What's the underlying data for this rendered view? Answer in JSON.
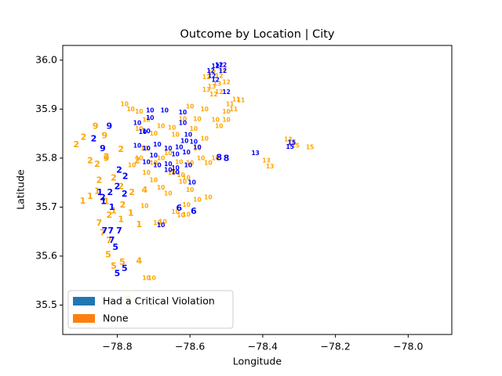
{
  "chart_data": {
    "type": "scatter",
    "title": "Outcome by Location | City",
    "xlabel": "Longitude",
    "ylabel": "Latitude",
    "xlim": [
      -78.95,
      -77.88
    ],
    "ylim": [
      35.44,
      36.03
    ],
    "xticks": [
      -78.8,
      -78.6,
      -78.4,
      -78.2,
      -78.0
    ],
    "xtick_labels": [
      "−78.8",
      "−78.6",
      "−78.4",
      "−78.2",
      "−78.0"
    ],
    "yticks": [
      35.5,
      35.6,
      35.7,
      35.8,
      35.9,
      36.0
    ],
    "ytick_labels": [
      "35.5",
      "35.6",
      "35.7",
      "35.8",
      "35.9",
      "36.0"
    ],
    "grid": false,
    "legend_position": "lower-left",
    "legend": [
      {
        "label": "Had a Critical Violation",
        "color": "#1f77b4"
      },
      {
        "label": "None",
        "color": "#ff7f0e"
      }
    ],
    "series": [
      {
        "name": "None",
        "color": "#ffa500",
        "points": [
          {
            "x": -78.77,
            "y": 35.513,
            "label": "0"
          },
          {
            "x": -78.875,
            "y": 35.722,
            "label": "1"
          },
          {
            "x": -78.855,
            "y": 35.733,
            "label": "1"
          },
          {
            "x": -78.83,
            "y": 35.712,
            "label": "1"
          },
          {
            "x": -78.81,
            "y": 35.693,
            "label": "1"
          },
          {
            "x": -78.79,
            "y": 35.675,
            "label": "1"
          },
          {
            "x": -78.763,
            "y": 35.688,
            "label": "1"
          },
          {
            "x": -78.74,
            "y": 35.665,
            "label": "1"
          },
          {
            "x": -78.895,
            "y": 35.713,
            "label": "1"
          },
          {
            "x": -78.913,
            "y": 35.828,
            "label": "2"
          },
          {
            "x": -78.893,
            "y": 35.843,
            "label": "2"
          },
          {
            "x": -78.875,
            "y": 35.795,
            "label": "2"
          },
          {
            "x": -78.855,
            "y": 35.788,
            "label": "2"
          },
          {
            "x": -78.83,
            "y": 35.803,
            "label": "2"
          },
          {
            "x": -78.81,
            "y": 35.76,
            "label": "2"
          },
          {
            "x": -78.79,
            "y": 35.742,
            "label": "2"
          },
          {
            "x": -78.785,
            "y": 35.705,
            "label": "2"
          },
          {
            "x": -78.76,
            "y": 35.73,
            "label": "2"
          },
          {
            "x": -78.745,
            "y": 35.795,
            "label": "2"
          },
          {
            "x": -78.822,
            "y": 35.684,
            "label": "2"
          },
          {
            "x": -78.85,
            "y": 35.755,
            "label": "2"
          },
          {
            "x": -78.79,
            "y": 35.818,
            "label": "2"
          },
          {
            "x": -78.86,
            "y": 35.865,
            "label": "9"
          },
          {
            "x": -78.835,
            "y": 35.846,
            "label": "9"
          },
          {
            "x": -78.83,
            "y": 35.8,
            "label": "9"
          },
          {
            "x": -78.725,
            "y": 35.735,
            "label": "4"
          },
          {
            "x": -78.74,
            "y": 35.59,
            "label": "4"
          },
          {
            "x": -78.84,
            "y": 35.648,
            "label": "7"
          },
          {
            "x": -78.823,
            "y": 35.632,
            "label": "7"
          },
          {
            "x": -78.85,
            "y": 35.668,
            "label": "7"
          },
          {
            "x": -78.825,
            "y": 35.603,
            "label": "5"
          },
          {
            "x": -78.81,
            "y": 35.58,
            "label": "5"
          },
          {
            "x": -78.786,
            "y": 35.588,
            "label": "5"
          },
          {
            "x": -78.763,
            "y": 35.9,
            "label": "10"
          },
          {
            "x": -78.78,
            "y": 35.91,
            "label": "10"
          },
          {
            "x": -78.74,
            "y": 35.895,
            "label": "10"
          },
          {
            "x": -78.72,
            "y": 35.878,
            "label": "10"
          },
          {
            "x": -78.68,
            "y": 35.865,
            "label": "10"
          },
          {
            "x": -78.74,
            "y": 35.86,
            "label": "10"
          },
          {
            "x": -78.7,
            "y": 35.85,
            "label": "10"
          },
          {
            "x": -78.725,
            "y": 35.82,
            "label": "10"
          },
          {
            "x": -78.74,
            "y": 35.8,
            "label": "10"
          },
          {
            "x": -78.76,
            "y": 35.785,
            "label": "10"
          },
          {
            "x": -78.7,
            "y": 35.79,
            "label": "10"
          },
          {
            "x": -78.68,
            "y": 35.8,
            "label": "10"
          },
          {
            "x": -78.72,
            "y": 35.77,
            "label": "10"
          },
          {
            "x": -78.66,
            "y": 35.81,
            "label": "10"
          },
          {
            "x": -78.7,
            "y": 35.755,
            "label": "10"
          },
          {
            "x": -78.68,
            "y": 35.74,
            "label": "10"
          },
          {
            "x": -78.66,
            "y": 35.728,
            "label": "10"
          },
          {
            "x": -78.62,
            "y": 35.752,
            "label": "10"
          },
          {
            "x": -78.6,
            "y": 35.735,
            "label": "10"
          },
          {
            "x": -78.63,
            "y": 35.792,
            "label": "10"
          },
          {
            "x": -78.6,
            "y": 35.79,
            "label": "10"
          },
          {
            "x": -78.57,
            "y": 35.8,
            "label": "10"
          },
          {
            "x": -78.55,
            "y": 35.79,
            "label": "10"
          },
          {
            "x": -78.58,
            "y": 35.82,
            "label": "10"
          },
          {
            "x": -78.56,
            "y": 35.84,
            "label": "10"
          },
          {
            "x": -78.59,
            "y": 35.86,
            "label": "10"
          },
          {
            "x": -78.58,
            "y": 35.88,
            "label": "10"
          },
          {
            "x": -78.56,
            "y": 35.9,
            "label": "10"
          },
          {
            "x": -78.6,
            "y": 35.905,
            "label": "10"
          },
          {
            "x": -78.62,
            "y": 35.88,
            "label": "10"
          },
          {
            "x": -78.64,
            "y": 35.848,
            "label": "10"
          },
          {
            "x": -78.65,
            "y": 35.862,
            "label": "10"
          },
          {
            "x": -78.53,
            "y": 35.878,
            "label": "10"
          },
          {
            "x": -78.5,
            "y": 35.895,
            "label": "10"
          },
          {
            "x": -78.5,
            "y": 35.878,
            "label": "10"
          },
          {
            "x": -78.53,
            "y": 35.8,
            "label": "10"
          },
          {
            "x": -78.61,
            "y": 35.705,
            "label": "10"
          },
          {
            "x": -78.58,
            "y": 35.715,
            "label": "10"
          },
          {
            "x": -78.55,
            "y": 35.72,
            "label": "10"
          },
          {
            "x": -78.64,
            "y": 35.69,
            "label": "10"
          },
          {
            "x": -78.625,
            "y": 35.683,
            "label": "10"
          },
          {
            "x": -78.61,
            "y": 35.685,
            "label": "10"
          },
          {
            "x": -78.65,
            "y": 35.77,
            "label": "10"
          },
          {
            "x": -78.675,
            "y": 35.67,
            "label": "10"
          },
          {
            "x": -78.69,
            "y": 35.668,
            "label": "10"
          },
          {
            "x": -78.72,
            "y": 35.555,
            "label": "10"
          },
          {
            "x": -78.705,
            "y": 35.555,
            "label": "10"
          },
          {
            "x": -78.725,
            "y": 35.702,
            "label": "10"
          },
          {
            "x": -78.625,
            "y": 35.765,
            "label": "10"
          },
          {
            "x": -78.61,
            "y": 35.76,
            "label": "10"
          },
          {
            "x": -78.52,
            "y": 35.865,
            "label": "10"
          },
          {
            "x": -78.49,
            "y": 35.91,
            "label": "11"
          },
          {
            "x": -78.473,
            "y": 35.92,
            "label": "11"
          },
          {
            "x": -78.46,
            "y": 35.918,
            "label": "11"
          },
          {
            "x": -78.48,
            "y": 35.9,
            "label": "11"
          },
          {
            "x": -78.555,
            "y": 35.965,
            "label": "12"
          },
          {
            "x": -78.54,
            "y": 35.975,
            "label": "12"
          },
          {
            "x": -78.52,
            "y": 35.968,
            "label": "12"
          },
          {
            "x": -78.51,
            "y": 35.982,
            "label": "12"
          },
          {
            "x": -78.535,
            "y": 35.93,
            "label": "12"
          },
          {
            "x": -78.52,
            "y": 35.935,
            "label": "12"
          },
          {
            "x": -78.5,
            "y": 35.955,
            "label": "12"
          },
          {
            "x": -78.555,
            "y": 35.94,
            "label": "13"
          },
          {
            "x": -78.54,
            "y": 35.946,
            "label": "13"
          },
          {
            "x": -78.525,
            "y": 35.952,
            "label": "13"
          },
          {
            "x": -78.39,
            "y": 35.795,
            "label": "13"
          },
          {
            "x": -78.38,
            "y": 35.783,
            "label": "13"
          },
          {
            "x": -78.33,
            "y": 35.838,
            "label": "13"
          },
          {
            "x": -78.32,
            "y": 35.83,
            "label": "13"
          },
          {
            "x": -78.31,
            "y": 35.825,
            "label": "15"
          },
          {
            "x": -78.27,
            "y": 35.822,
            "label": "15"
          }
        ]
      },
      {
        "name": "Had a Critical Violation",
        "color": "#0000ff",
        "points": [
          {
            "x": -78.848,
            "y": 35.73,
            "label": "1"
          },
          {
            "x": -78.838,
            "y": 35.712,
            "label": "1"
          },
          {
            "x": -78.815,
            "y": 35.7,
            "label": "1"
          },
          {
            "x": -78.82,
            "y": 35.73,
            "label": "2"
          },
          {
            "x": -78.84,
            "y": 35.72,
            "label": "2"
          },
          {
            "x": -78.8,
            "y": 35.742,
            "label": "2"
          },
          {
            "x": -78.78,
            "y": 35.727,
            "label": "2"
          },
          {
            "x": -78.778,
            "y": 35.763,
            "label": "2"
          },
          {
            "x": -78.795,
            "y": 35.776,
            "label": "2"
          },
          {
            "x": -78.865,
            "y": 35.84,
            "label": "2"
          },
          {
            "x": -78.822,
            "y": 35.865,
            "label": "9"
          },
          {
            "x": -78.84,
            "y": 35.82,
            "label": "9"
          },
          {
            "x": -78.835,
            "y": 35.652,
            "label": "7"
          },
          {
            "x": -78.818,
            "y": 35.652,
            "label": "7"
          },
          {
            "x": -78.795,
            "y": 35.652,
            "label": "7"
          },
          {
            "x": -78.815,
            "y": 35.633,
            "label": "7"
          },
          {
            "x": -78.805,
            "y": 35.618,
            "label": "5"
          },
          {
            "x": -78.8,
            "y": 35.565,
            "label": "5"
          },
          {
            "x": -78.78,
            "y": 35.575,
            "label": "5"
          },
          {
            "x": -78.63,
            "y": 35.698,
            "label": "6"
          },
          {
            "x": -78.59,
            "y": 35.692,
            "label": "6"
          },
          {
            "x": -78.5,
            "y": 35.8,
            "label": "8"
          },
          {
            "x": -78.52,
            "y": 35.801,
            "label": "8"
          },
          {
            "x": -78.71,
            "y": 35.897,
            "label": "10"
          },
          {
            "x": -78.67,
            "y": 35.897,
            "label": "10"
          },
          {
            "x": -78.62,
            "y": 35.893,
            "label": "10"
          },
          {
            "x": -78.71,
            "y": 35.882,
            "label": "10"
          },
          {
            "x": -78.745,
            "y": 35.872,
            "label": "10"
          },
          {
            "x": -78.62,
            "y": 35.872,
            "label": "10"
          },
          {
            "x": -78.72,
            "y": 35.855,
            "label": "10"
          },
          {
            "x": -78.73,
            "y": 35.853,
            "label": "10"
          },
          {
            "x": -78.605,
            "y": 35.848,
            "label": "10"
          },
          {
            "x": -78.615,
            "y": 35.835,
            "label": "10"
          },
          {
            "x": -78.63,
            "y": 35.822,
            "label": "10"
          },
          {
            "x": -78.69,
            "y": 35.828,
            "label": "10"
          },
          {
            "x": -78.745,
            "y": 35.825,
            "label": "10"
          },
          {
            "x": -78.72,
            "y": 35.82,
            "label": "10"
          },
          {
            "x": -78.66,
            "y": 35.82,
            "label": "10"
          },
          {
            "x": -78.58,
            "y": 35.822,
            "label": "10"
          },
          {
            "x": -78.59,
            "y": 35.833,
            "label": "10"
          },
          {
            "x": -78.61,
            "y": 35.812,
            "label": "10"
          },
          {
            "x": -78.64,
            "y": 35.808,
            "label": "10"
          },
          {
            "x": -78.7,
            "y": 35.805,
            "label": "10"
          },
          {
            "x": -78.72,
            "y": 35.792,
            "label": "10"
          },
          {
            "x": -78.69,
            "y": 35.785,
            "label": "10"
          },
          {
            "x": -78.66,
            "y": 35.788,
            "label": "10"
          },
          {
            "x": -78.64,
            "y": 35.78,
            "label": "10"
          },
          {
            "x": -78.66,
            "y": 35.776,
            "label": "10"
          },
          {
            "x": -78.64,
            "y": 35.771,
            "label": "10"
          },
          {
            "x": -78.595,
            "y": 35.75,
            "label": "10"
          },
          {
            "x": -78.68,
            "y": 35.663,
            "label": "10"
          },
          {
            "x": -78.605,
            "y": 35.785,
            "label": "10"
          },
          {
            "x": -78.543,
            "y": 35.978,
            "label": "12"
          },
          {
            "x": -78.52,
            "y": 35.99,
            "label": "12"
          },
          {
            "x": -78.53,
            "y": 35.988,
            "label": "12"
          },
          {
            "x": -78.51,
            "y": 35.978,
            "label": "12"
          },
          {
            "x": -78.54,
            "y": 35.968,
            "label": "12"
          },
          {
            "x": -78.53,
            "y": 35.96,
            "label": "12"
          },
          {
            "x": -78.5,
            "y": 35.935,
            "label": "12"
          },
          {
            "x": -78.51,
            "y": 35.99,
            "label": "12"
          },
          {
            "x": -78.42,
            "y": 35.81,
            "label": "13"
          },
          {
            "x": -78.325,
            "y": 35.823,
            "label": "15"
          },
          {
            "x": -78.32,
            "y": 35.832,
            "label": "15"
          }
        ]
      }
    ]
  }
}
